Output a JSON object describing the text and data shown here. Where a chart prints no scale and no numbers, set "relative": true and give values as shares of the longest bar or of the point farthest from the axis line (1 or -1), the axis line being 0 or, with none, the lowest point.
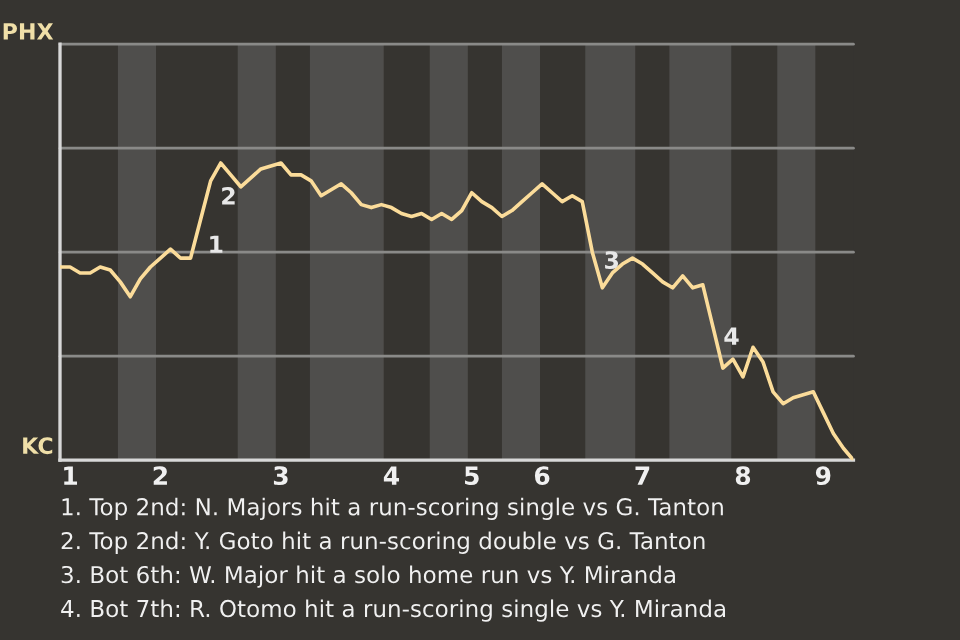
{
  "chart_data": {
    "type": "line",
    "relative": true,
    "categories": [
      null,
      "1",
      null,
      null,
      null,
      null,
      null,
      null,
      null,
      null,
      "2",
      null,
      null,
      null,
      null,
      null,
      null,
      null,
      null,
      null,
      null,
      null,
      "3",
      null,
      null,
      null,
      null,
      null,
      null,
      null,
      null,
      null,
      null,
      "4",
      null,
      null,
      null,
      null,
      null,
      null,
      null,
      "5",
      null,
      null,
      null,
      null,
      null,
      null,
      "6",
      null,
      null,
      null,
      null,
      null,
      null,
      null,
      null,
      null,
      "7",
      null,
      null,
      null,
      null,
      null,
      null,
      null,
      null,
      null,
      "8",
      null,
      null,
      null,
      null,
      null,
      null,
      null,
      "9",
      null,
      null,
      null
    ],
    "series": [
      {
        "color": "#fbdc9a",
        "values": [
          0.65,
          0.65,
          0.63,
          0.63,
          0.65,
          0.64,
          0.6,
          0.55,
          0.61,
          0.65,
          0.68,
          0.71,
          0.68,
          0.68,
          0.81,
          0.94,
          1.0,
          0.96,
          0.92,
          0.95,
          0.98,
          0.99,
          1.0,
          0.96,
          0.96,
          0.94,
          0.89,
          0.91,
          0.93,
          0.9,
          0.86,
          0.85,
          0.86,
          0.85,
          0.83,
          0.82,
          0.83,
          0.81,
          0.83,
          0.81,
          0.84,
          0.9,
          0.87,
          0.85,
          0.82,
          0.84,
          0.87,
          0.9,
          0.93,
          0.9,
          0.87,
          0.89,
          0.87,
          0.7,
          0.58,
          0.63,
          0.66,
          0.68,
          0.66,
          0.63,
          0.6,
          0.58,
          0.62,
          0.58,
          0.59,
          0.45,
          0.31,
          0.34,
          0.28,
          0.38,
          0.33,
          0.23,
          0.19,
          0.21,
          0.22,
          0.23,
          0.16,
          0.09,
          0.04,
          0
        ]
      }
    ],
    "ref_lines": [
      {
        "axis": "y",
        "value": 0.35,
        "label": null,
        "color": "#8a8a88"
      },
      {
        "axis": "y",
        "value": 0.7,
        "label": null,
        "color": "#8a8a88"
      },
      {
        "axis": "y",
        "value": 1.05,
        "label": null,
        "color": "#8a8a88"
      },
      {
        "axis": "y",
        "value": 1.4,
        "label": "PHX",
        "color": "#8a8a88"
      }
    ],
    "annotations": [
      "KC",
      "1",
      "2",
      "3",
      "4",
      "1. Top 2nd: N. Majors hit a run-scoring single vs G. Tanton",
      "2. Top 2nd: Y. Goto hit a run-scoring double vs G. Tanton",
      "3. Bot 6th: W. Major hit a solo home run vs Y. Miranda",
      "4. Bot 7th: R. Otomo hit a run-scoring single vs Y. Miranda"
    ]
  }
}
